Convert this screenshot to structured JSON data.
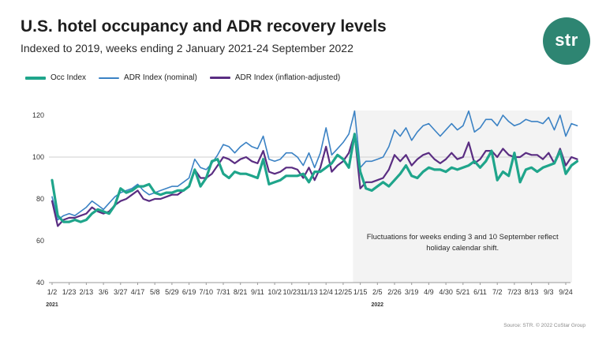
{
  "header": {
    "title": "U.S. hotel occupancy and ADR recovery levels",
    "subtitle": "Indexed to 2019, weeks ending 2 January 2021-24 September 2022"
  },
  "logo": {
    "text": "str"
  },
  "source": "Source: STR. © 2022 CoStar Group",
  "colors": {
    "occ": "#1fa58b",
    "adr_nominal": "#3b82c4",
    "adr_real": "#5a2d82",
    "shade": "#f3f3f3",
    "ref_line": "#cfcfcf"
  },
  "chart_data": {
    "type": "line",
    "title": "U.S. hotel occupancy and ADR recovery levels",
    "subtitle": "Indexed to 2019, weeks ending 2 January 2021-24 September 2022",
    "ylim": [
      40,
      125
    ],
    "y_ticks": [
      40,
      60,
      80,
      100,
      120
    ],
    "reference_line": 100,
    "grid": false,
    "legend_position": "top-left",
    "x_tick_labels": [
      "1/2",
      "1/23",
      "2/13",
      "3/6",
      "3/27",
      "4/17",
      "5/8",
      "5/29",
      "6/19",
      "7/10",
      "7/31",
      "8/21",
      "9/11",
      "10/2",
      "10/23",
      "11/13",
      "12/4",
      "12/25",
      "1/15",
      "2/5",
      "2/26",
      "3/19",
      "4/9",
      "4/30",
      "5/21",
      "6/11",
      "7/2",
      "7/23",
      "8/13",
      "9/3",
      "9/24"
    ],
    "x_tick_weeks": [
      0,
      3,
      6,
      9,
      12,
      15,
      18,
      21,
      24,
      27,
      30,
      33,
      36,
      39,
      42,
      45,
      48,
      51,
      54,
      57,
      60,
      63,
      66,
      69,
      72,
      75,
      78,
      81,
      84,
      87,
      90
    ],
    "year_labels": [
      {
        "text": "2021",
        "week": 0
      },
      {
        "text": "2022",
        "week": 57
      }
    ],
    "shaded_region_weeks": [
      53,
      90
    ],
    "annotation": "Fluctuations for weeks ending 3 and 10 September reflect holiday calendar shift.",
    "series": [
      {
        "name": "Occ Index",
        "values": [
          89,
          72,
          69,
          69,
          70,
          69,
          70,
          73,
          75,
          74,
          73,
          77,
          85,
          83,
          84,
          86,
          86,
          87,
          83,
          82,
          83,
          83,
          84,
          84,
          86,
          94,
          86,
          90,
          98,
          99,
          92,
          90,
          93,
          92,
          92,
          91,
          90,
          99,
          87,
          88,
          89,
          91,
          91,
          91,
          92,
          88,
          93,
          93,
          95,
          97,
          101,
          99,
          95,
          111,
          93,
          85,
          84,
          86,
          88,
          86,
          89,
          92,
          96,
          91,
          90,
          93,
          95,
          94,
          94,
          93,
          95,
          94,
          95,
          96,
          98,
          95,
          98,
          103,
          89,
          93,
          91,
          102,
          88,
          94,
          95,
          93,
          95,
          96,
          97,
          103,
          92,
          96,
          98
        ]
      },
      {
        "name": "ADR Index (nominal)",
        "values": [
          81,
          70,
          72,
          73,
          72,
          74,
          76,
          79,
          77,
          75,
          78,
          81,
          83,
          84,
          85,
          87,
          84,
          82,
          83,
          84,
          85,
          86,
          86,
          88,
          90,
          99,
          95,
          94,
          97,
          101,
          106,
          105,
          102,
          105,
          107,
          105,
          104,
          110,
          99,
          98,
          99,
          102,
          102,
          100,
          96,
          102,
          95,
          102,
          114,
          101,
          104,
          107,
          111,
          122,
          95,
          98,
          98,
          99,
          100,
          105,
          113,
          110,
          114,
          108,
          112,
          115,
          116,
          113,
          110,
          113,
          116,
          113,
          115,
          122,
          112,
          114,
          118,
          118,
          115,
          120,
          117,
          115,
          116,
          118,
          117,
          117,
          116,
          119,
          113,
          120,
          110,
          116,
          115
        ]
      },
      {
        "name": "ADR Index (inflation-adjusted)",
        "values": [
          79,
          67,
          70,
          71,
          71,
          72,
          73,
          76,
          74,
          73,
          74,
          77,
          79,
          80,
          82,
          84,
          80,
          79,
          80,
          80,
          81,
          82,
          82,
          84,
          86,
          94,
          90,
          90,
          92,
          96,
          100,
          99,
          97,
          99,
          100,
          98,
          97,
          103,
          93,
          92,
          93,
          95,
          95,
          94,
          90,
          95,
          89,
          95,
          105,
          93,
          96,
          98,
          102,
          111,
          85,
          88,
          88,
          89,
          90,
          94,
          101,
          98,
          101,
          96,
          99,
          101,
          102,
          99,
          97,
          99,
          102,
          99,
          100,
          107,
          97,
          99,
          103,
          103,
          100,
          104,
          101,
          100,
          100,
          102,
          101,
          101,
          99,
          102,
          97,
          104,
          96,
          100,
          99
        ]
      }
    ]
  }
}
